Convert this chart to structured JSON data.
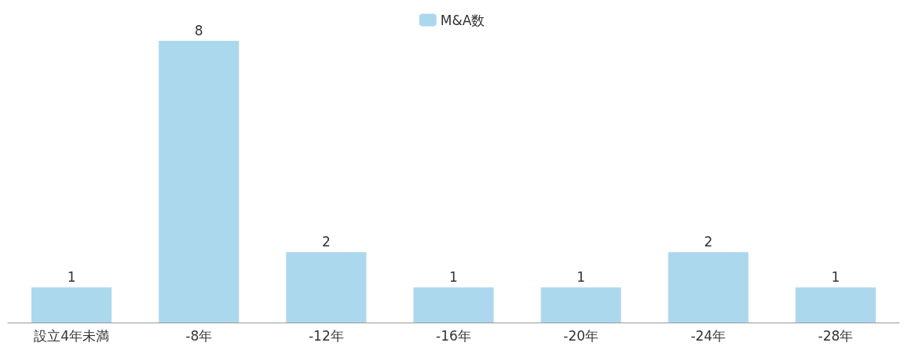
{
  "chart_data": {
    "type": "bar",
    "categories": [
      "設立4年未満",
      "-8年",
      "-12年",
      "-16年",
      "-20年",
      "-24年",
      "-28年"
    ],
    "series": [
      {
        "name": "M&A数",
        "color": "#acd8ee",
        "values": [
          1,
          8,
          2,
          1,
          1,
          2,
          1
        ]
      }
    ],
    "data_labels": true,
    "legend": "top"
  }
}
